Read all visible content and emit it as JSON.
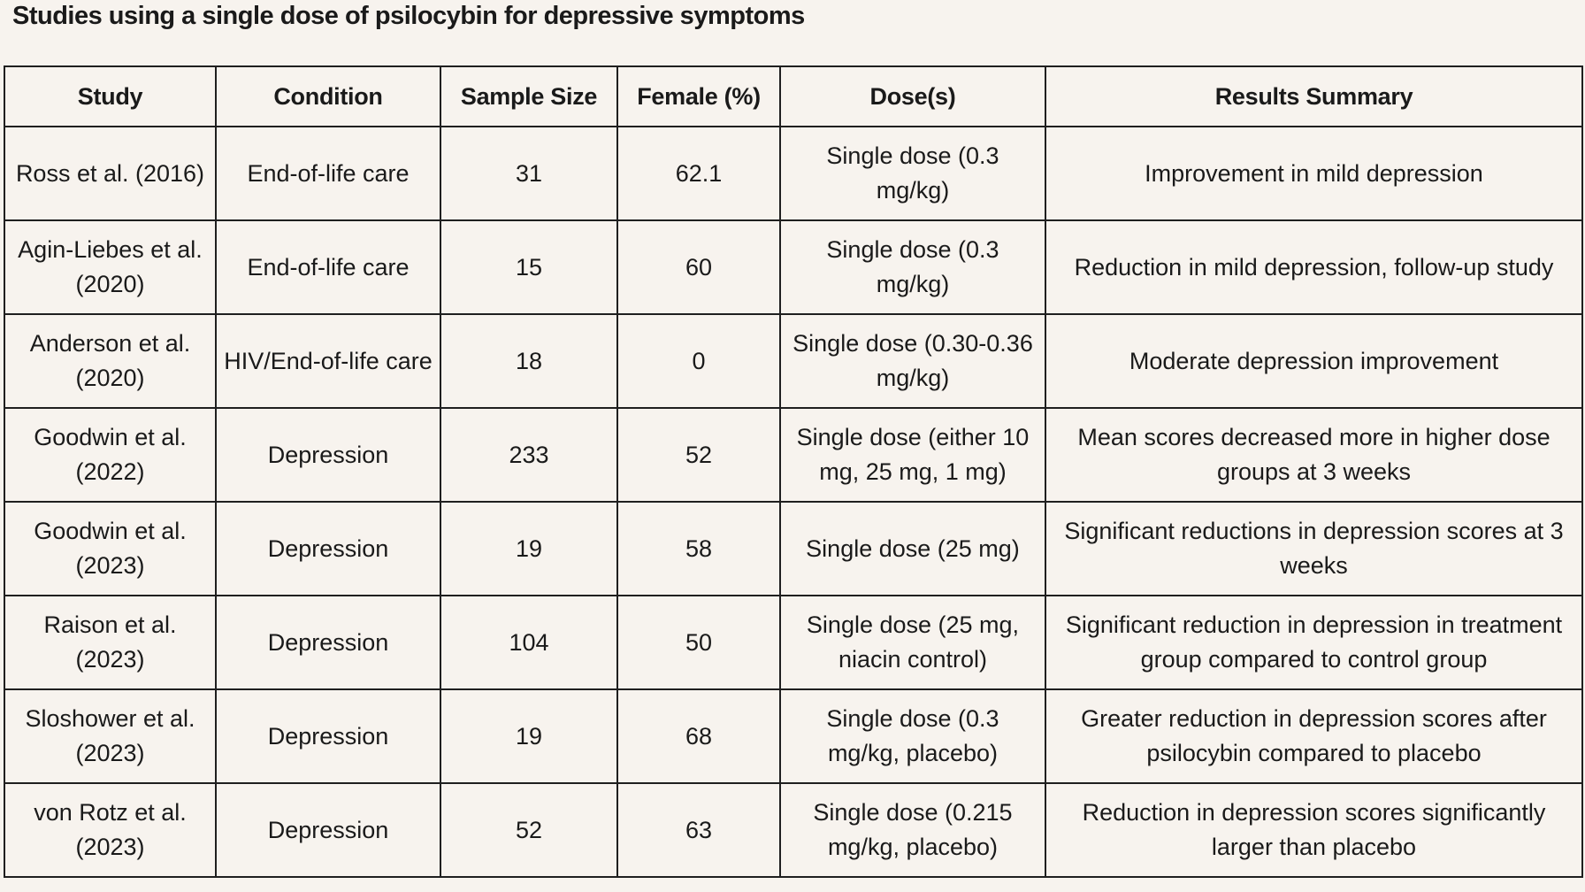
{
  "title": "Studies using a single dose of psilocybin for depressive symptoms",
  "table": {
    "headers": [
      "Study",
      "Condition",
      "Sample Size",
      "Female (%)",
      "Dose(s)",
      "Results Summary"
    ],
    "rows": [
      [
        "Ross et al. (2016)",
        "End-of-life care",
        "31",
        "62.1",
        "Single dose (0.3 mg/kg)",
        "Improvement in mild depression"
      ],
      [
        "Agin-Liebes et al. (2020)",
        "End-of-life care",
        "15",
        "60",
        "Single dose (0.3 mg/kg)",
        "Reduction in mild depression, follow-up study"
      ],
      [
        "Anderson et al. (2020)",
        "HIV/End-of-life care",
        "18",
        "0",
        "Single dose (0.30-0.36 mg/kg)",
        "Moderate depression improvement"
      ],
      [
        "Goodwin et al. (2022)",
        "Depression",
        "233",
        "52",
        "Single dose (either 10 mg, 25 mg, 1 mg)",
        "Mean scores decreased more in higher dose groups at 3 weeks"
      ],
      [
        "Goodwin et al. (2023)",
        "Depression",
        "19",
        "58",
        "Single dose (25 mg)",
        "Significant reductions in depression scores at 3 weeks"
      ],
      [
        "Raison et al. (2023)",
        "Depression",
        "104",
        "50",
        "Single dose (25 mg, niacin control)",
        "Significant reduction in depression in treatment group compared to control group"
      ],
      [
        "Sloshower et al. (2023)",
        "Depression",
        "19",
        "68",
        "Single dose (0.3 mg/kg, placebo)",
        "Greater reduction in depression scores after psilocybin compared to placebo"
      ],
      [
        "von Rotz et al. (2023)",
        "Depression",
        "52",
        "63",
        "Single dose (0.215 mg/kg, placebo)",
        "Reduction in depression scores significantly larger than placebo"
      ]
    ]
  }
}
